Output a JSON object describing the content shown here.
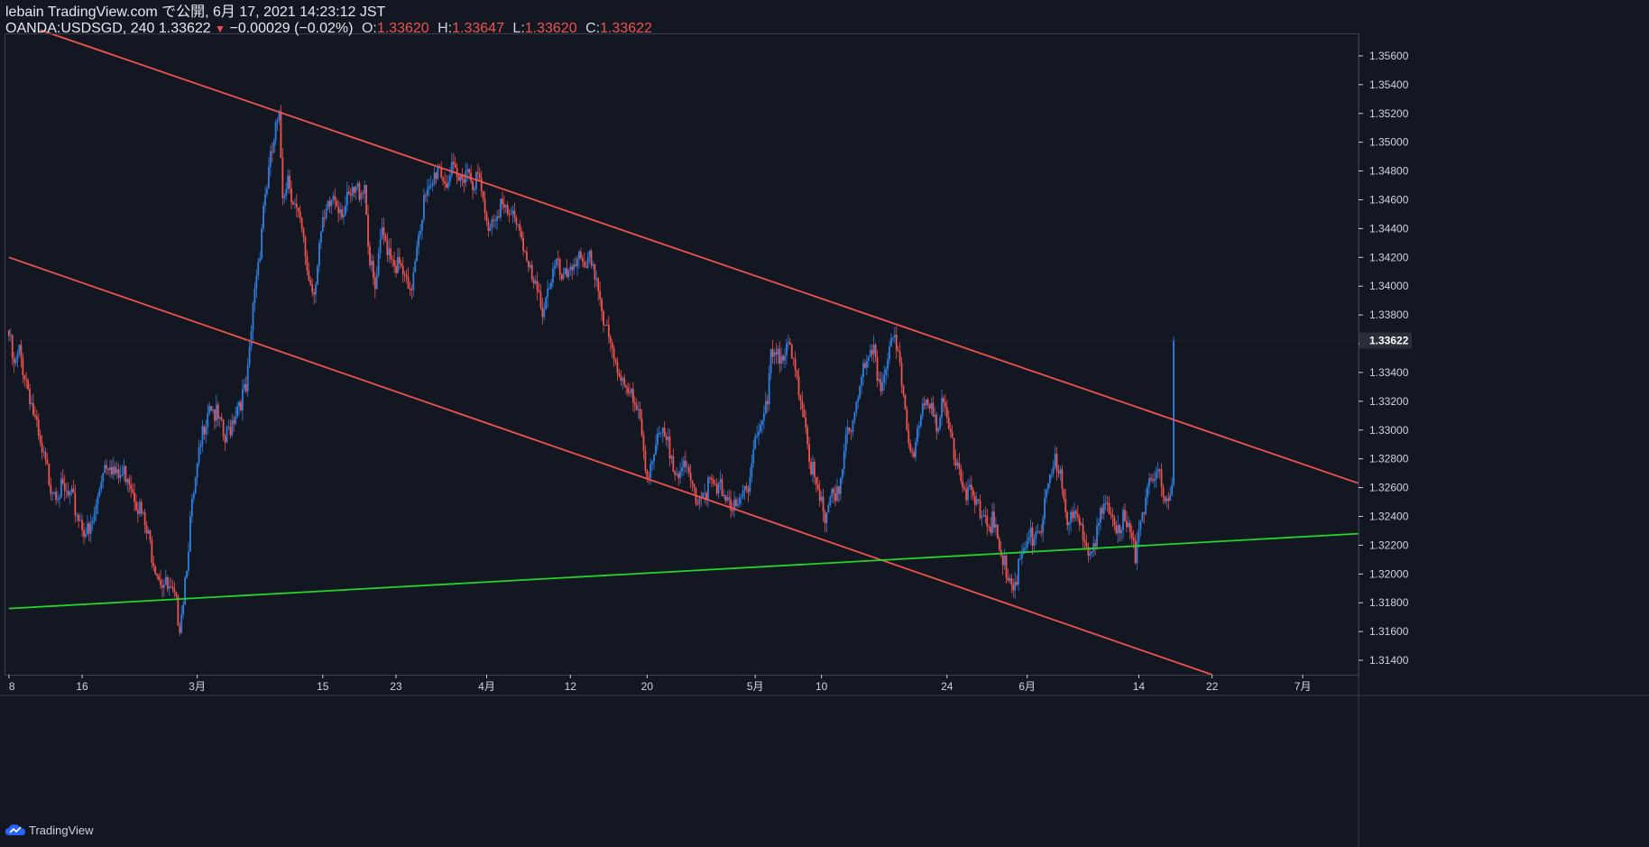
{
  "header": {
    "line1": "lebain TradingView.com で公開, 6月 17, 2021 14:23:12 JST",
    "symbol": "OANDA:USDSGD, 240",
    "last": "1.33622",
    "change": "−0.00029 (−0.02%)",
    "open_label": "O:",
    "open": "1.33620",
    "high_label": "H:",
    "high": "1.33647",
    "low_label": "L:",
    "low": "1.33620",
    "close_label": "C:",
    "close": "1.33622"
  },
  "footer": {
    "brand": "TradingView",
    "icon": "tradingview-cloud-icon"
  },
  "colors": {
    "background": "#131722",
    "up": "#2f7fe0",
    "down": "#ef5350",
    "trendline_red": "#ef5350",
    "trendline_green": "#22d62a",
    "axis_text": "#d1d4dc",
    "axis_line": "#3a3e4a"
  },
  "chart_data": {
    "type": "candlestick",
    "symbol": "OANDA:USDSGD",
    "interval": "240",
    "ylim": [
      1.313,
      1.3575
    ],
    "y_ticks": [
      "1.31400",
      "1.31600",
      "1.31800",
      "1.32000",
      "1.32200",
      "1.32400",
      "1.32600",
      "1.32800",
      "1.33000",
      "1.33200",
      "1.33400",
      "1.33600",
      "1.33800",
      "1.34000",
      "1.34200",
      "1.34400",
      "1.34600",
      "1.34800",
      "1.35000",
      "1.35200",
      "1.35400",
      "1.35600"
    ],
    "last_price_label": "1.33622",
    "x_ticks": [
      "8",
      "16",
      "3月",
      "15",
      "23",
      "4月",
      "12",
      "20",
      "5月",
      "10",
      "24",
      "6月",
      "14",
      "22",
      "7月"
    ],
    "x_tick_index": [
      0,
      42,
      108,
      180,
      222,
      274,
      322,
      366,
      428,
      466,
      538,
      584,
      648,
      690,
      742
    ],
    "last_bar_index": 668,
    "price_path": [
      [
        0,
        1.337
      ],
      [
        3,
        1.3346
      ],
      [
        6,
        1.3358
      ],
      [
        12,
        1.333
      ],
      [
        18,
        1.329
      ],
      [
        24,
        1.3268
      ],
      [
        30,
        1.3262
      ],
      [
        36,
        1.3255
      ],
      [
        42,
        1.324
      ],
      [
        46,
        1.323
      ],
      [
        50,
        1.325
      ],
      [
        54,
        1.328
      ],
      [
        58,
        1.3285
      ],
      [
        62,
        1.327
      ],
      [
        68,
        1.3276
      ],
      [
        72,
        1.3262
      ],
      [
        76,
        1.3245
      ],
      [
        80,
        1.3228
      ],
      [
        86,
        1.3205
      ],
      [
        90,
        1.3195
      ],
      [
        95,
        1.3185
      ],
      [
        98,
        1.3172
      ],
      [
        100,
        1.319
      ],
      [
        104,
        1.324
      ],
      [
        108,
        1.3275
      ],
      [
        112,
        1.331
      ],
      [
        115,
        1.3326
      ],
      [
        120,
        1.331
      ],
      [
        124,
        1.3296
      ],
      [
        128,
        1.3312
      ],
      [
        132,
        1.3326
      ],
      [
        136,
        1.333
      ],
      [
        138,
        1.3355
      ],
      [
        141,
        1.3405
      ],
      [
        144,
        1.3432
      ],
      [
        146,
        1.3462
      ],
      [
        150,
        1.349
      ],
      [
        153,
        1.3512
      ],
      [
        155,
        1.3518
      ],
      [
        157,
        1.347
      ],
      [
        160,
        1.3482
      ],
      [
        164,
        1.346
      ],
      [
        168,
        1.344
      ],
      [
        172,
        1.341
      ],
      [
        175,
        1.3402
      ],
      [
        178,
        1.3435
      ],
      [
        182,
        1.3452
      ],
      [
        186,
        1.3468
      ],
      [
        192,
        1.3458
      ],
      [
        198,
        1.3468
      ],
      [
        204,
        1.3476
      ],
      [
        207,
        1.342
      ],
      [
        210,
        1.34
      ],
      [
        214,
        1.344
      ],
      [
        218,
        1.3432
      ],
      [
        222,
        1.342
      ],
      [
        226,
        1.3412
      ],
      [
        230,
        1.3395
      ],
      [
        234,
        1.3438
      ],
      [
        238,
        1.3462
      ],
      [
        242,
        1.347
      ],
      [
        246,
        1.349
      ],
      [
        250,
        1.3478
      ],
      [
        254,
        1.3482
      ],
      [
        258,
        1.3476
      ],
      [
        262,
        1.3488
      ],
      [
        266,
        1.348
      ],
      [
        270,
        1.3476
      ],
      [
        274,
        1.3445
      ],
      [
        278,
        1.3455
      ],
      [
        282,
        1.3462
      ],
      [
        286,
        1.345
      ],
      [
        290,
        1.3455
      ],
      [
        294,
        1.3442
      ],
      [
        298,
        1.3415
      ],
      [
        302,
        1.34
      ],
      [
        306,
        1.339
      ],
      [
        310,
        1.3408
      ],
      [
        314,
        1.3418
      ],
      [
        318,
        1.3405
      ],
      [
        322,
        1.342
      ],
      [
        326,
        1.3426
      ],
      [
        330,
        1.341
      ],
      [
        334,
        1.3425
      ],
      [
        338,
        1.3405
      ],
      [
        341,
        1.338
      ],
      [
        344,
        1.3365
      ],
      [
        347,
        1.3352
      ],
      [
        350,
        1.3345
      ],
      [
        354,
        1.334
      ],
      [
        358,
        1.3322
      ],
      [
        362,
        1.3308
      ],
      [
        366,
        1.3276
      ],
      [
        370,
        1.3288
      ],
      [
        374,
        1.33
      ],
      [
        378,
        1.3292
      ],
      [
        382,
        1.3282
      ],
      [
        386,
        1.3276
      ],
      [
        390,
        1.327
      ],
      [
        394,
        1.326
      ],
      [
        398,
        1.3262
      ],
      [
        402,
        1.3266
      ],
      [
        406,
        1.326
      ],
      [
        410,
        1.3265
      ],
      [
        414,
        1.3255
      ],
      [
        417,
        1.3245
      ],
      [
        420,
        1.3255
      ],
      [
        424,
        1.327
      ],
      [
        428,
        1.33
      ],
      [
        432,
        1.331
      ],
      [
        435,
        1.3322
      ],
      [
        437,
        1.3355
      ],
      [
        440,
        1.3364
      ],
      [
        444,
        1.3355
      ],
      [
        448,
        1.336
      ],
      [
        452,
        1.3335
      ],
      [
        456,
        1.332
      ],
      [
        460,
        1.328
      ],
      [
        464,
        1.3255
      ],
      [
        468,
        1.3245
      ],
      [
        472,
        1.3265
      ],
      [
        476,
        1.3255
      ],
      [
        480,
        1.3295
      ],
      [
        484,
        1.3312
      ],
      [
        488,
        1.334
      ],
      [
        492,
        1.3348
      ],
      [
        496,
        1.3355
      ],
      [
        500,
        1.3335
      ],
      [
        504,
        1.336
      ],
      [
        508,
        1.3362
      ],
      [
        512,
        1.334
      ],
      [
        516,
        1.33
      ],
      [
        520,
        1.3292
      ],
      [
        524,
        1.3316
      ],
      [
        528,
        1.3328
      ],
      [
        532,
        1.3312
      ],
      [
        536,
        1.332
      ],
      [
        540,
        1.33
      ],
      [
        544,
        1.3285
      ],
      [
        548,
        1.3265
      ],
      [
        552,
        1.3255
      ],
      [
        556,
        1.325
      ],
      [
        560,
        1.3245
      ],
      [
        564,
        1.324
      ],
      [
        567,
        1.3225
      ],
      [
        570,
        1.321
      ],
      [
        574,
        1.3205
      ],
      [
        576,
        1.3198
      ],
      [
        580,
        1.3212
      ],
      [
        584,
        1.3225
      ],
      [
        588,
        1.3232
      ],
      [
        592,
        1.324
      ],
      [
        596,
        1.326
      ],
      [
        600,
        1.3282
      ],
      [
        603,
        1.3278
      ],
      [
        607,
        1.3245
      ],
      [
        611,
        1.324
      ],
      [
        615,
        1.3235
      ],
      [
        619,
        1.3226
      ],
      [
        623,
        1.3232
      ],
      [
        627,
        1.3245
      ],
      [
        631,
        1.3248
      ],
      [
        635,
        1.324
      ],
      [
        639,
        1.3242
      ],
      [
        643,
        1.323
      ],
      [
        646,
        1.3218
      ],
      [
        648,
        1.324
      ],
      [
        652,
        1.326
      ],
      [
        656,
        1.3265
      ],
      [
        660,
        1.327
      ],
      [
        664,
        1.326
      ],
      [
        667,
        1.3265
      ],
      [
        668,
        1.3363
      ]
    ],
    "trendlines": [
      {
        "color": "#ef5350",
        "points": [
          [
            18,
            1.3578
          ],
          [
            774,
            1.3263
          ]
        ]
      },
      {
        "color": "#ef5350",
        "points": [
          [
            0,
            1.342
          ],
          [
            690,
            1.313
          ]
        ]
      },
      {
        "color": "#22d62a",
        "points": [
          [
            0,
            1.3176
          ],
          [
            774,
            1.3228
          ]
        ]
      }
    ],
    "xlim": [
      -2,
      774
    ]
  }
}
